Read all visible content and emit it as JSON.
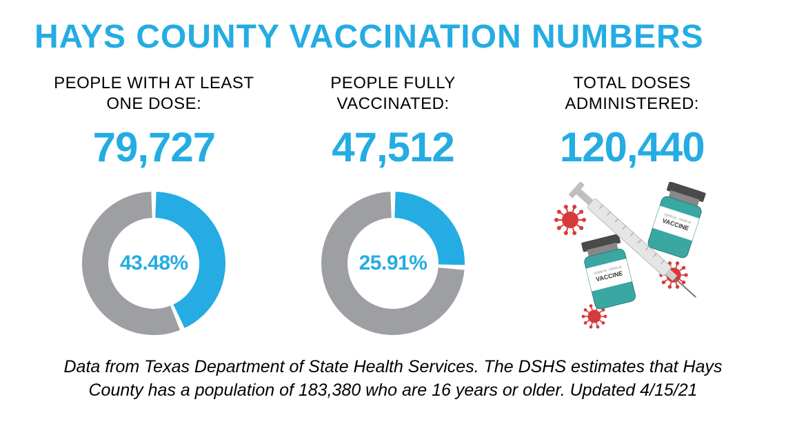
{
  "title": {
    "text": "HAYS COUNTY VACCINATION NUMBERS",
    "color": "#24ace3",
    "fontsize": 48
  },
  "accent_color": "#24ace3",
  "ring_bg_color": "#9d9fa2",
  "text_color": "#000000",
  "background_color": "#ffffff",
  "columns": [
    {
      "label_line1": "PEOPLE WITH AT LEAST",
      "label_line2": "ONE DOSE:",
      "value": "79,727",
      "value_fontsize": 60,
      "donut": {
        "pct": 43.48,
        "pct_label": "43.48%",
        "pct_fontsize": 30,
        "ring_thickness": 38,
        "start_angle_deg": 0,
        "gap_deg": 4
      }
    },
    {
      "label_line1": "PEOPLE FULLY",
      "label_line2": "VACCINATED:",
      "value": "47,512",
      "value_fontsize": 60,
      "donut": {
        "pct": 25.91,
        "pct_label": "25.91%",
        "pct_fontsize": 30,
        "ring_thickness": 38,
        "start_angle_deg": 0,
        "gap_deg": 4
      }
    },
    {
      "label_line1": "TOTAL DOSES",
      "label_line2": "ADMINISTERED:",
      "value": "120,440",
      "value_fontsize": 60,
      "illustration": {
        "vial_body_color": "#3aa7a3",
        "vial_label_color": "#ffffff",
        "vial_cap_color": "#4a4a4a",
        "vial_label_text": "VACCINE",
        "syringe_body_color": "#e5e5e5",
        "syringe_plunger_color": "#bfbfbf",
        "virus_color": "#d73a3a"
      }
    }
  ],
  "footer": {
    "text": "Data from Texas Department of State Health Services. The DSHS estimates that Hays County has a population of 183,380 who are 16 years or older. Updated 4/15/21",
    "fontsize": 25
  }
}
